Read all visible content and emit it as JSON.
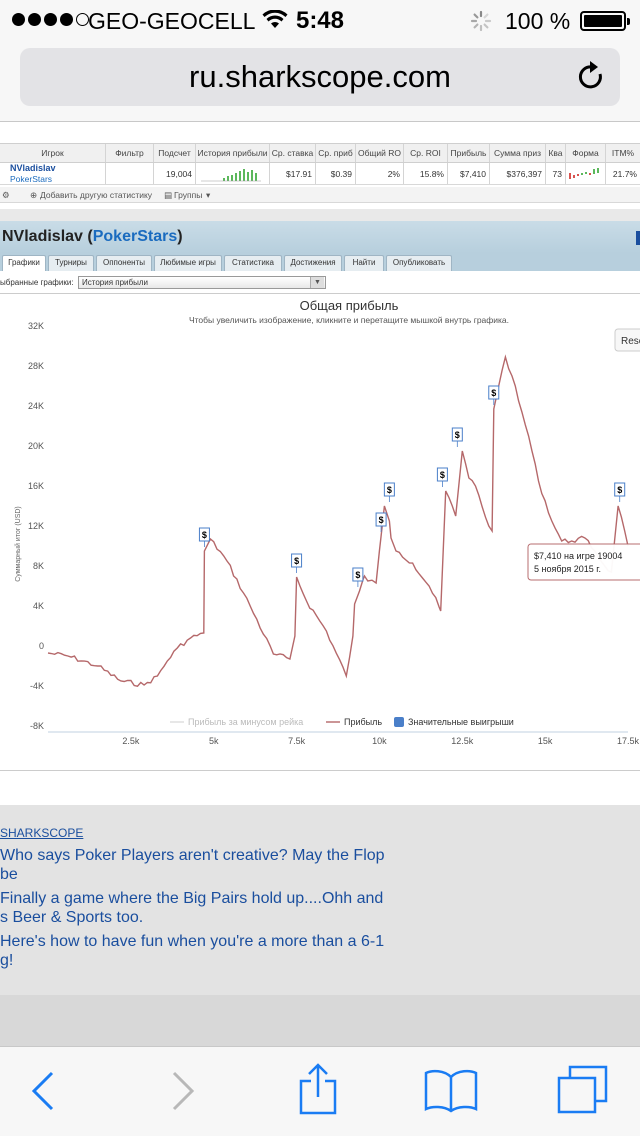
{
  "status_bar": {
    "carrier": "GEO-GEOCELL",
    "time": "5:48",
    "battery": "100 %"
  },
  "browser": {
    "url": "ru.sharkscope.com"
  },
  "stats_table": {
    "columns": [
      "Игрок",
      "Фильтр",
      "Подсчет",
      "История прибыли",
      "Ср. ставка",
      "Ср. приб",
      "Общий RO",
      "Ср. ROI",
      "Прибыль",
      "Сумма приз",
      "Ква",
      "Форма",
      "ITM%"
    ],
    "row": {
      "player": "NVladislav",
      "site": "PokerStars",
      "count": "19,004",
      "avg_stake": "$17.91",
      "avg_profit": "$0.39",
      "total_roi": "2%",
      "avg_roi": "15.8%",
      "profit": "$7,410",
      "prize_sum": "$376,397",
      "qual": "73",
      "itm": "21.7%"
    },
    "toolbar": {
      "add_stat": "Добавить другую статистику",
      "groups": "Группы"
    }
  },
  "panel": {
    "player": "NVladislav",
    "site": "PokerStars",
    "tabs": [
      "Графики",
      "Турниры",
      "Оппоненты",
      "Любимые игры",
      "Статистика",
      "Достижения",
      "Найти",
      "Опубликовать"
    ],
    "select_label": "ыбранные графики:",
    "select_value": "История прибыли"
  },
  "chart_data": {
    "type": "line",
    "title": "Общая прибыль",
    "subtitle": "Чтобы увеличить изображение, кликните и перетащите мышкой внутрь графика.",
    "ylabel": "Суммарный итог (USD)",
    "xlabel": "",
    "ylim": [
      -8000,
      32000
    ],
    "xlim": [
      0,
      17500
    ],
    "y_ticks": [
      "32K",
      "28K",
      "24K",
      "20K",
      "16K",
      "12K",
      "8K",
      "4K",
      "0",
      "-4K",
      "-8K"
    ],
    "x_ticks": [
      "2.5k",
      "5k",
      "7.5k",
      "10k",
      "12.5k",
      "15k",
      "17.5k"
    ],
    "grid": false,
    "legend": [
      "Прибыль за минусом рейка",
      "Прибыль",
      "Значительные выигрыши"
    ],
    "legend_position": "bottom",
    "reset_button": "Rese",
    "tooltip": [
      "$7,410 на игре 19004",
      "5 ноября 2015 г."
    ],
    "series": [
      {
        "name": "Прибыль",
        "color": "#b5686a",
        "x": [
          0,
          600,
          1500,
          2200,
          2900,
          3300,
          3600,
          3900,
          4300,
          4700,
          4720,
          4900,
          5400,
          6100,
          6800,
          7300,
          7450,
          7500,
          7800,
          8400,
          9000,
          9200,
          9250,
          9400,
          9500,
          9550,
          9650,
          9900,
          10000,
          10050,
          10150,
          10300,
          10350,
          10500,
          11000,
          11500,
          11800,
          11850,
          12000,
          12200,
          12300,
          12500,
          12700,
          12900,
          13300,
          13400,
          13450,
          13600,
          13800,
          14000,
          14200,
          14500,
          14800,
          15200,
          15500,
          15800,
          16200,
          16500,
          16800,
          17000,
          17200,
          17400,
          17500
        ],
        "y": [
          -700,
          -1000,
          -2000,
          -3500,
          -3900,
          -3000,
          -1500,
          -200,
          800,
          1300,
          9500,
          10700,
          8500,
          4000,
          -800,
          -1300,
          1000,
          6900,
          4500,
          1500,
          -3000,
          1000,
          4200,
          5500,
          6600,
          7000,
          6500,
          6300,
          9500,
          11000,
          14000,
          12500,
          10800,
          9500,
          8300,
          6000,
          3900,
          3500,
          15500,
          14000,
          13000,
          19500,
          16800,
          16000,
          12000,
          11500,
          23700,
          26000,
          28900,
          27000,
          24500,
          21000,
          16500,
          12500,
          10500,
          10500,
          10800,
          9500,
          8000,
          7410,
          14000,
          11500,
          10000
        ]
      }
    ],
    "significant_wins_x": [
      4720,
      7500,
      9350,
      10050,
      10300,
      11900,
      12350,
      13450,
      17250
    ]
  },
  "news": {
    "source": "SHARKSCOPE",
    "items": [
      [
        "Who says Poker Players aren't creative? May the Flop be"
      ],
      [
        "Finally a game where the Big Pairs hold up....Ohh and",
        "s Beer & Sports too."
      ],
      [
        "Here's how to have fun when you're a more than a 6-1",
        "g!"
      ]
    ]
  },
  "toolbar_icons": [
    "back-icon",
    "forward-icon",
    "share-icon",
    "bookmarks-icon",
    "tabs-icon"
  ]
}
